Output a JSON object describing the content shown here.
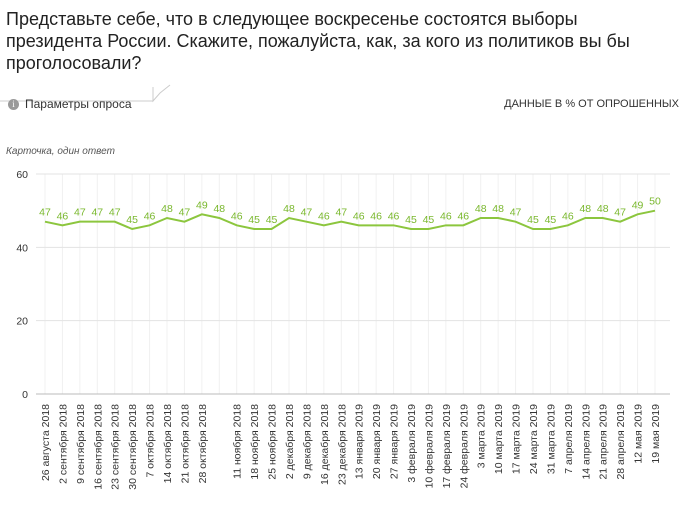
{
  "chart_data": {
    "type": "line",
    "title": "Представьте себе, что в следующее воскресенье состоятся выборы президента России. Скажите, пожалуйста, как, за кого из политиков вы бы проголосовали?",
    "options_label": "Параметры опроса",
    "units_note": "ДАННЫЕ В % ОТ ОПРОШЕННЫХ",
    "note": "Карточка, один ответ",
    "categories": [
      "26 августа 2018",
      "2 сентября 2018",
      "9 сентября 2018",
      "16 сентября 2018",
      "23 сентября 2018",
      "30 сентября 2018",
      "7 октября 2018",
      "14 октября 2018",
      "21 октября 2018",
      "28 октября 2018",
      null,
      "11 ноября 2018",
      "18 ноября 2018",
      "25 ноября 2018",
      "2 декабря 2018",
      "9 декабря 2018",
      "16 декабря 2018",
      "23 декабря 2018",
      "13 января 2019",
      "20 января 2019",
      "27 января 2019",
      "3 февраля 2019",
      "10 февраля 2019",
      "17 февраля 2019",
      "24 февраля 2019",
      "3 марта 2019",
      "10 марта 2019",
      "17 марта 2019",
      "24 марта 2019",
      "31 марта 2019",
      "7 апреля 2019",
      "14 апреля 2019",
      "21 апреля 2019",
      "28 апреля 2019",
      "12 мая 2019",
      "19 мая 2019"
    ],
    "values": [
      47,
      46,
      47,
      47,
      47,
      45,
      46,
      48,
      47,
      49,
      48,
      46,
      45,
      45,
      48,
      47,
      46,
      47,
      46,
      46,
      46,
      45,
      45,
      46,
      46,
      48,
      48,
      47,
      45,
      45,
      46,
      48,
      48,
      47,
      49,
      50
    ],
    "color": "#8cc63e",
    "ylim": [
      0,
      60
    ],
    "yticks": [
      0,
      20,
      40,
      60
    ],
    "grid": true
  }
}
